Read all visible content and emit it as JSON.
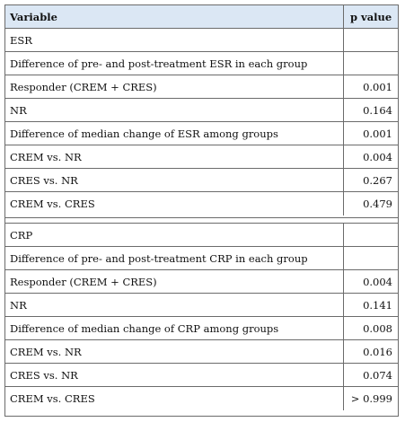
{
  "header": {
    "variable": "Variable",
    "p_value": "p value"
  },
  "esr_rows": [
    {
      "variable": "ESR",
      "p": ""
    },
    {
      "variable": "Difference of pre‐ and post‐treatment ESR in each group",
      "p": ""
    },
    {
      "variable": "Responder (CREM + CRES)",
      "p": "0.001"
    },
    {
      "variable": "NR",
      "p": "0.164"
    },
    {
      "variable": "Difference of median change of ESR among groups",
      "p": "0.001"
    },
    {
      "variable": "CREM vs. NR",
      "p": "0.004"
    },
    {
      "variable": "CRES vs. NR",
      "p": "0.267"
    },
    {
      "variable": "CREM vs. CRES",
      "p": "0.479"
    }
  ],
  "crp_rows": [
    {
      "variable": "CRP",
      "p": ""
    },
    {
      "variable": "Difference of pre‐ and post‐treatment CRP in each group",
      "p": ""
    },
    {
      "variable": "Responder (CREM + CRES)",
      "p": "0.004"
    },
    {
      "variable": "NR",
      "p": "0.141"
    },
    {
      "variable": "Difference of median change of CRP among groups",
      "p": "0.008"
    },
    {
      "variable": "CREM vs. NR",
      "p": "0.016"
    },
    {
      "variable": "CRES vs. NR",
      "p": "0.074"
    },
    {
      "variable": "CREM vs. CRES",
      "p": "> 0.999"
    }
  ],
  "colors": {
    "header_bg": "#dbe7f4",
    "border": "#6b6b6b"
  }
}
